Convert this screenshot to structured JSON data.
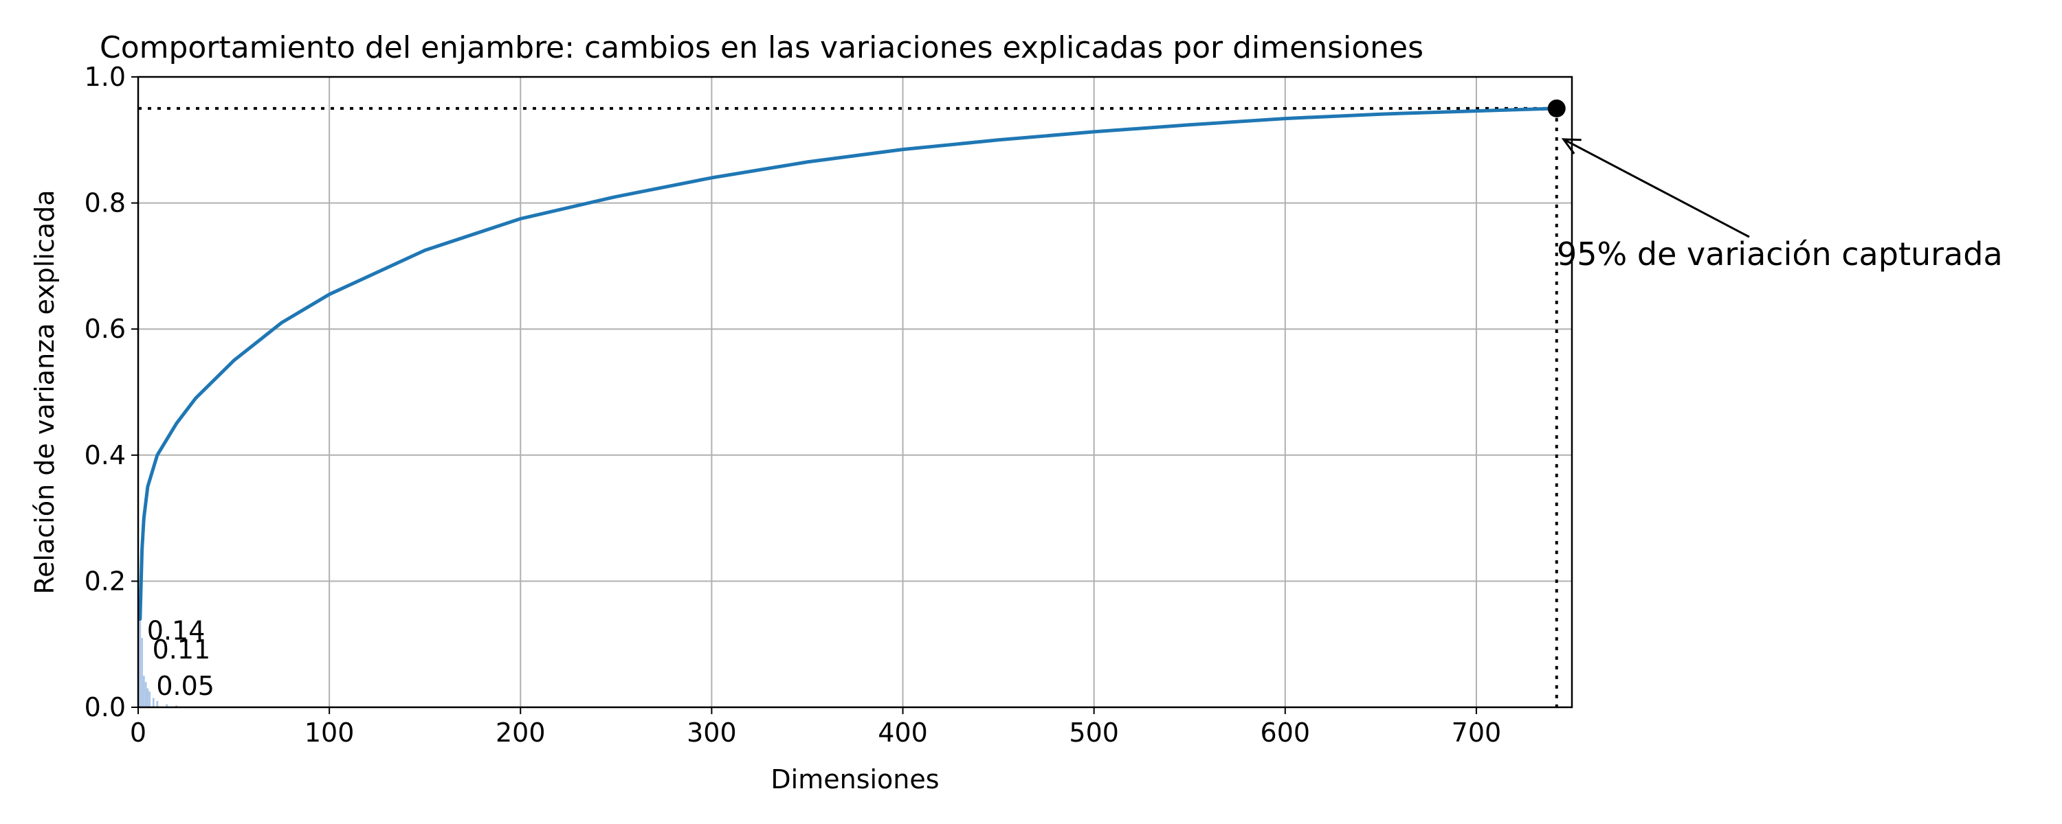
{
  "chart_data": {
    "type": "line",
    "title": "Comportamiento del enjambre: cambios en las variaciones explicadas por dimensiones",
    "xlabel": "Dimensiones",
    "ylabel": "Relación de varianza explicada",
    "xlim": [
      0,
      750
    ],
    "ylim": [
      0,
      1.0
    ],
    "xticks": [
      0,
      100,
      200,
      300,
      400,
      500,
      600,
      700
    ],
    "yticks": [
      0.0,
      0.2,
      0.4,
      0.6,
      0.8,
      1.0
    ],
    "xtick_labels": [
      "0",
      "100",
      "200",
      "300",
      "400",
      "500",
      "600",
      "700"
    ],
    "ytick_labels": [
      "0.0",
      "0.2",
      "0.4",
      "0.6",
      "0.8",
      "1.0"
    ],
    "grid": true,
    "series": [
      {
        "type": "line",
        "color": "#1f77b4",
        "x": [
          1,
          2,
          3,
          5,
          10,
          20,
          30,
          50,
          75,
          100,
          150,
          200,
          250,
          300,
          350,
          400,
          450,
          500,
          550,
          600,
          650,
          700,
          742
        ],
        "y": [
          0.14,
          0.25,
          0.3,
          0.35,
          0.4,
          0.45,
          0.49,
          0.55,
          0.61,
          0.655,
          0.725,
          0.775,
          0.81,
          0.84,
          0.865,
          0.885,
          0.9,
          0.913,
          0.924,
          0.934,
          0.941,
          0.946,
          0.95
        ]
      },
      {
        "type": "bar",
        "color": "#aec7e8",
        "x": [
          1,
          2,
          3,
          4,
          5,
          6,
          8,
          10,
          15,
          20
        ],
        "y": [
          0.14,
          0.11,
          0.05,
          0.04,
          0.03,
          0.025,
          0.015,
          0.01,
          0.005,
          0.003
        ]
      }
    ],
    "bar_labels": [
      {
        "x": 1,
        "y": 0.14,
        "text": "0.14"
      },
      {
        "x": 2,
        "y": 0.11,
        "text": "0.11"
      },
      {
        "x": 3,
        "y": 0.05,
        "text": "0.05"
      }
    ],
    "reference_lines": {
      "horizontal_y": 0.95,
      "vertical_x": 742,
      "style": "dotted"
    },
    "marker": {
      "x": 742,
      "y": 0.95
    },
    "annotation": {
      "text": "95% de variación capturada",
      "target_x": 742,
      "target_y": 0.95
    }
  }
}
